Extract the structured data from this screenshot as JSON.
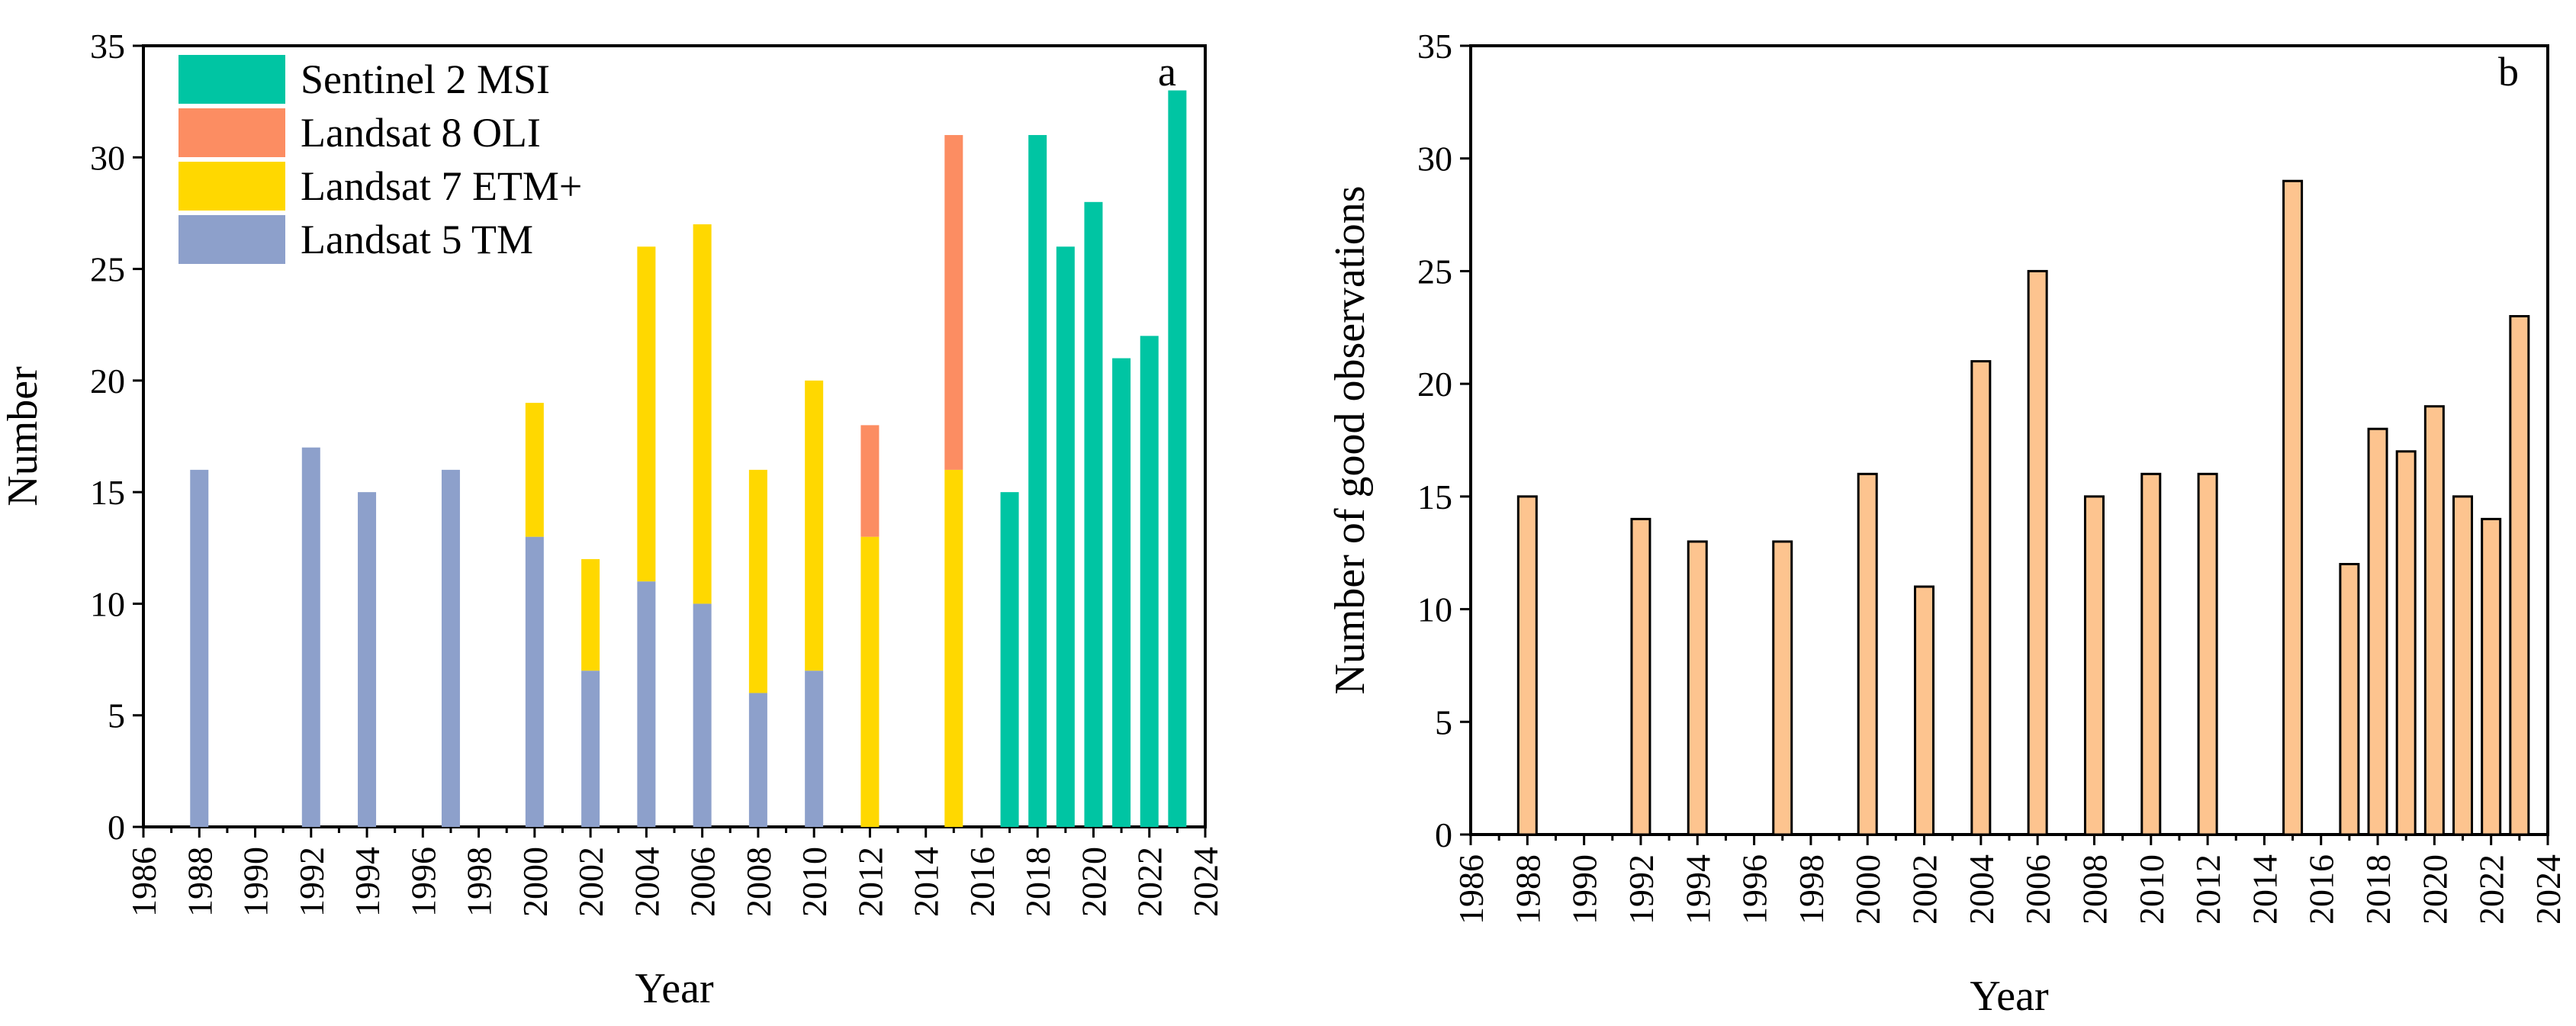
{
  "chart_data": [
    {
      "type": "bar",
      "stacked": true,
      "panel_label": "a",
      "xlabel": "Year",
      "ylabel": "Number",
      "xlim": [
        1986,
        2024
      ],
      "ylim": [
        0,
        35
      ],
      "x_ticks": [
        "1986",
        "1988",
        "1990",
        "1992",
        "1994",
        "1996",
        "1998",
        "2000",
        "2002",
        "2004",
        "2006",
        "2008",
        "2010",
        "2012",
        "2014",
        "2016",
        "2018",
        "2020",
        "2022",
        "2024"
      ],
      "y_ticks": [
        "0",
        "5",
        "10",
        "15",
        "20",
        "25",
        "30",
        "35"
      ],
      "legend_position": "top-left",
      "years": [
        1988,
        1992,
        1994,
        1997,
        2000,
        2002,
        2004,
        2006,
        2008,
        2010,
        2012,
        2015,
        2017,
        2018,
        2019,
        2020,
        2021,
        2022,
        2023
      ],
      "series": [
        {
          "name": "Landsat 5 TM",
          "color": "#8da0cb",
          "values": [
            16,
            17,
            15,
            16,
            13,
            7,
            11,
            10,
            6,
            7,
            0,
            0,
            0,
            0,
            0,
            0,
            0,
            0,
            0
          ]
        },
        {
          "name": "Landsat 7 ETM+",
          "color": "#ffd800",
          "values": [
            0,
            0,
            0,
            0,
            6,
            5,
            15,
            17,
            10,
            13,
            13,
            16,
            0,
            0,
            0,
            0,
            0,
            0,
            0
          ]
        },
        {
          "name": "Landsat 8 OLI",
          "color": "#fc8d62",
          "values": [
            0,
            0,
            0,
            0,
            0,
            0,
            0,
            0,
            0,
            0,
            5,
            15,
            0,
            0,
            0,
            0,
            0,
            0,
            0
          ]
        },
        {
          "name": "Sentinel 2 MSI",
          "color": "#00c5a3",
          "values": [
            0,
            0,
            0,
            0,
            0,
            0,
            0,
            0,
            0,
            0,
            0,
            0,
            15,
            31,
            26,
            28,
            21,
            22,
            33
          ]
        }
      ],
      "legend_order": [
        "Sentinel 2 MSI",
        "Landsat 8 OLI",
        "Landsat 7 ETM+",
        "Landsat 5 TM"
      ]
    },
    {
      "type": "bar",
      "panel_label": "b",
      "xlabel": "Year",
      "ylabel": "Number of good observations",
      "xlim": [
        1986,
        2024
      ],
      "ylim": [
        0,
        35
      ],
      "x_ticks": [
        "1986",
        "1988",
        "1990",
        "1992",
        "1994",
        "1996",
        "1998",
        "2000",
        "2002",
        "2004",
        "2006",
        "2008",
        "2010",
        "2012",
        "2014",
        "2016",
        "2018",
        "2020",
        "2022",
        "2024"
      ],
      "y_ticks": [
        "0",
        "5",
        "10",
        "15",
        "20",
        "25",
        "30",
        "35"
      ],
      "bar_color": "#fdc48f",
      "bar_edge_color": "#000000",
      "years": [
        1988,
        1992,
        1994,
        1997,
        2000,
        2002,
        2004,
        2006,
        2008,
        2010,
        2012,
        2015,
        2017,
        2018,
        2019,
        2020,
        2021,
        2022,
        2023
      ],
      "values": [
        15,
        14,
        13,
        13,
        16,
        11,
        21,
        25,
        15,
        16,
        16,
        29,
        12,
        18,
        17,
        19,
        15,
        14,
        23
      ]
    }
  ]
}
